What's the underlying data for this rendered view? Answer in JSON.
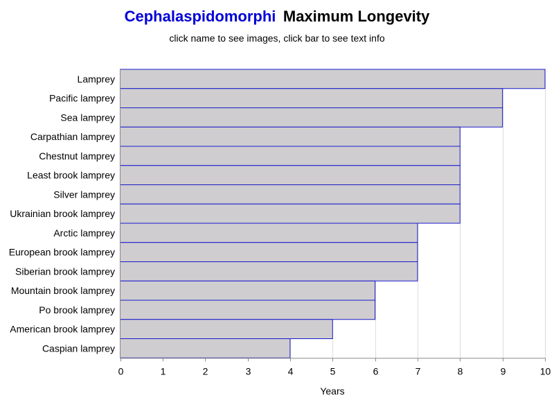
{
  "title": {
    "link_text": "Cephalaspidomorphi",
    "rest_text": "Maximum Longevity"
  },
  "subtitle": "click name to see images, click bar to see text info",
  "colors": {
    "link": "#0000d8",
    "title": "#000000",
    "bar_fill": "#cfcdcf",
    "bar_stroke": "#1a1acc",
    "grid": "#dcdcdc",
    "axis": "#8a8a8a",
    "text": "#000000"
  },
  "chart_data": {
    "type": "bar",
    "orientation": "horizontal",
    "categories": [
      "Lamprey",
      "Pacific lamprey",
      "Sea lamprey",
      "Carpathian lamprey",
      "Chestnut lamprey",
      "Least brook lamprey",
      "Silver lamprey",
      "Ukrainian brook lamprey",
      "Arctic lamprey",
      "European brook lamprey",
      "Siberian brook lamprey",
      "Mountain brook lamprey",
      "Po brook lamprey",
      "American brook lamprey",
      "Caspian lamprey"
    ],
    "values": [
      10,
      9,
      9,
      8,
      8,
      8,
      8,
      8,
      7,
      7,
      7,
      6,
      6,
      5,
      4
    ],
    "xlabel": "Years",
    "xlim": [
      0,
      10
    ],
    "xticks": [
      "0",
      "1",
      "2",
      "3",
      "4",
      "5",
      "6",
      "7",
      "8",
      "9",
      "10"
    ],
    "grid": "vertical"
  }
}
